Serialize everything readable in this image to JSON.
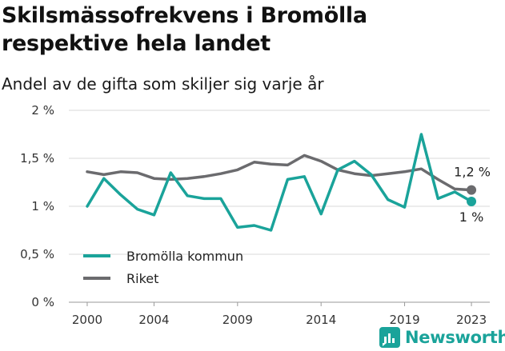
{
  "title": "Skilsmässofrekvens i Bromölla respektive hela landet",
  "subtitle": "Andel av de gifta som skiljer sig varje år",
  "brand": {
    "name": "Newsworthy",
    "icon": "newsworthy-logo-icon",
    "color": "#1aa39a"
  },
  "chart_data": {
    "type": "line",
    "x": [
      2000,
      2001,
      2002,
      2003,
      2004,
      2005,
      2006,
      2007,
      2008,
      2009,
      2010,
      2011,
      2012,
      2013,
      2014,
      2015,
      2016,
      2017,
      2018,
      2019,
      2020,
      2021,
      2022,
      2023
    ],
    "x_ticks": [
      "2000",
      "2004",
      "2009",
      "2014",
      "2019",
      "2023"
    ],
    "y_ticks": [
      "0 %",
      "0,5 %",
      "1 %",
      "1,5 %",
      "2 %"
    ],
    "ylim": [
      0,
      2
    ],
    "grid": "horizontal",
    "legend_position": "bottom-left",
    "series": [
      {
        "name": "Bromölla kommun",
        "color": "#1aa39a",
        "end_label": "1 %",
        "values": [
          1.0,
          1.29,
          1.12,
          0.97,
          0.91,
          1.35,
          1.11,
          1.08,
          1.08,
          0.78,
          0.8,
          0.75,
          1.28,
          1.31,
          0.92,
          1.38,
          1.47,
          1.33,
          1.07,
          0.99,
          1.75,
          1.08,
          1.15,
          1.05
        ]
      },
      {
        "name": "Riket",
        "color": "#6b6b6e",
        "end_label": "1,2 %",
        "values": [
          1.36,
          1.33,
          1.36,
          1.35,
          1.29,
          1.28,
          1.29,
          1.31,
          1.34,
          1.38,
          1.46,
          1.44,
          1.43,
          1.53,
          1.47,
          1.38,
          1.34,
          1.32,
          1.34,
          1.36,
          1.39,
          1.28,
          1.18,
          1.17
        ]
      }
    ]
  }
}
